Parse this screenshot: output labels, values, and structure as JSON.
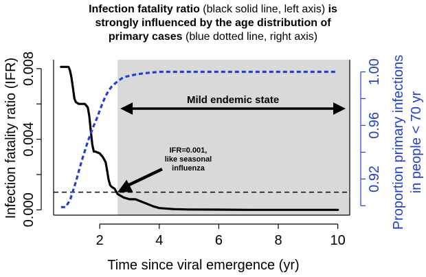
{
  "chart_data": {
    "type": "line",
    "title": {
      "line1_bold": "Infection fatality ratio",
      "line1_rest": " (black solid line, left axis) ",
      "line1_bold2": "is",
      "line2_bold": "strongly influenced by the age distribution of",
      "line3_bold": "primary cases",
      "line3_rest": " (blue dotted line, right axis)"
    },
    "xlabel": "Time since viral emergence (yr)",
    "ylabel_left": "Infection fatality ratio (IFR)",
    "ylabel_right_line1": "Proportion primary infections",
    "ylabel_right_line2": "in people  < 70 yr",
    "xlim": [
      0.45,
      10.4
    ],
    "ylim_left": [
      -0.0003,
      0.0085
    ],
    "ylim_right": [
      0.893,
      1.009
    ],
    "xticks": [
      2,
      4,
      6,
      8,
      10
    ],
    "xtick_labels": [
      "2",
      "4",
      "6",
      "8",
      "10"
    ],
    "yticks_left": [
      0.0,
      0.004,
      0.008
    ],
    "ytick_labels_left": [
      "0.000",
      "0.004",
      "0.008"
    ],
    "yticks_left_minor": [
      0.002,
      0.006
    ],
    "yticks_right": [
      0.92,
      0.96,
      1.0
    ],
    "ytick_labels_right": [
      "0.92",
      "0.96",
      "1.00"
    ],
    "yticks_right_minor": [
      0.9,
      0.94,
      0.98
    ],
    "shaded_region": {
      "x_start": 2.6,
      "x_end": 10.4,
      "label": "Mild endemic state"
    },
    "reference_line": {
      "y": 0.001,
      "style": "dashed"
    },
    "annotation": {
      "lines": [
        "IFR=0.001,",
        "like seasonal",
        "influenza"
      ],
      "point": {
        "x": 2.6,
        "y": 0.001
      }
    },
    "series": [
      {
        "axis": "left",
        "style": "solid",
        "color": "#000000",
        "x": [
          0.7,
          0.95,
          1.0,
          1.05,
          1.1,
          1.15,
          1.2,
          1.3,
          1.4,
          1.5,
          1.6,
          1.65,
          1.7,
          1.75,
          1.8,
          1.85,
          2.0,
          2.1,
          2.2,
          2.25,
          2.3,
          2.35,
          2.4,
          2.5,
          2.6,
          2.8,
          3.0,
          3.2,
          3.5,
          3.8,
          4.0,
          4.5,
          5.0,
          6.0,
          7.0,
          8.0,
          9.0,
          10.0
        ],
        "y": [
          0.0081,
          0.0081,
          0.0079,
          0.0075,
          0.0069,
          0.0063,
          0.0061,
          0.006,
          0.006,
          0.006,
          0.0058,
          0.0053,
          0.0045,
          0.0037,
          0.0033,
          0.0033,
          0.0032,
          0.003,
          0.0027,
          0.0022,
          0.0017,
          0.0014,
          0.0013,
          0.0012,
          0.0009,
          0.0007,
          0.0006,
          0.0006,
          0.0004,
          0.0002,
          0.0001,
          4e-05,
          2e-05,
          1e-05,
          0.0,
          0.0,
          0.0,
          0.0
        ]
      },
      {
        "axis": "right",
        "style": "dotted",
        "color": "#1f3fd6",
        "x": [
          0.7,
          0.85,
          1.0,
          1.1,
          1.2,
          1.3,
          1.4,
          1.5,
          1.6,
          1.7,
          1.8,
          1.9,
          2.0,
          2.1,
          2.2,
          2.3,
          2.4,
          2.5,
          2.6,
          2.8,
          3.0,
          3.2,
          3.5,
          4.0,
          5.0,
          6.0,
          8.0,
          10.0
        ],
        "y": [
          0.899,
          0.899,
          0.904,
          0.911,
          0.918,
          0.926,
          0.934,
          0.941,
          0.948,
          0.954,
          0.96,
          0.965,
          0.971,
          0.977,
          0.982,
          0.986,
          0.989,
          0.991,
          0.993,
          0.996,
          0.997,
          0.998,
          0.999,
          1.0,
          1.0,
          1.0,
          1.0,
          1.0
        ]
      }
    ]
  }
}
